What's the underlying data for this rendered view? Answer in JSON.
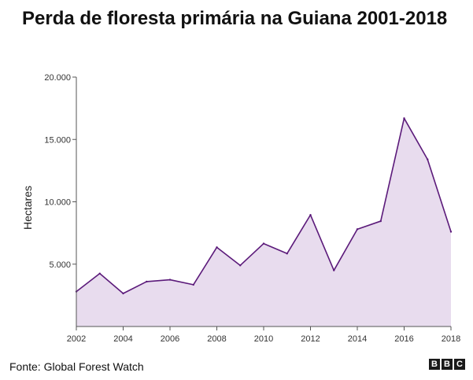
{
  "title": "Perda de floresta primária na Guiana 2001-2018",
  "source": "Fonte: Global Forest Watch",
  "logo": {
    "letters": [
      "B",
      "B",
      "C"
    ]
  },
  "colors": {
    "line": "#5b1a7a",
    "fill": "#e8dcee",
    "axis": "#555555"
  },
  "chart_data": {
    "type": "area",
    "title": "Perda de floresta primária na Guiana 2001-2018",
    "ylabel": "Hectares",
    "xlabel": "",
    "x": [
      2002,
      2003,
      2004,
      2005,
      2006,
      2007,
      2008,
      2009,
      2010,
      2011,
      2012,
      2013,
      2014,
      2015,
      2016,
      2017,
      2018
    ],
    "values": [
      2800,
      4250,
      2650,
      3600,
      3750,
      3350,
      6350,
      4900,
      6650,
      5850,
      8950,
      4500,
      7800,
      8450,
      16700,
      13400,
      7600
    ],
    "xlim": [
      2002,
      2018
    ],
    "ylim": [
      0,
      20000
    ],
    "yticks": [
      5000,
      10000,
      15000,
      20000
    ],
    "ytick_labels": [
      "5.000",
      "10.000",
      "15.000",
      "20.000"
    ],
    "xticks": [
      2002,
      2004,
      2006,
      2008,
      2010,
      2012,
      2014,
      2016,
      2018
    ],
    "xtick_labels": [
      "2002",
      "2004",
      "2006",
      "2008",
      "2010",
      "2012",
      "2014",
      "2016",
      "2018"
    ],
    "grid": false,
    "legend": "none"
  }
}
